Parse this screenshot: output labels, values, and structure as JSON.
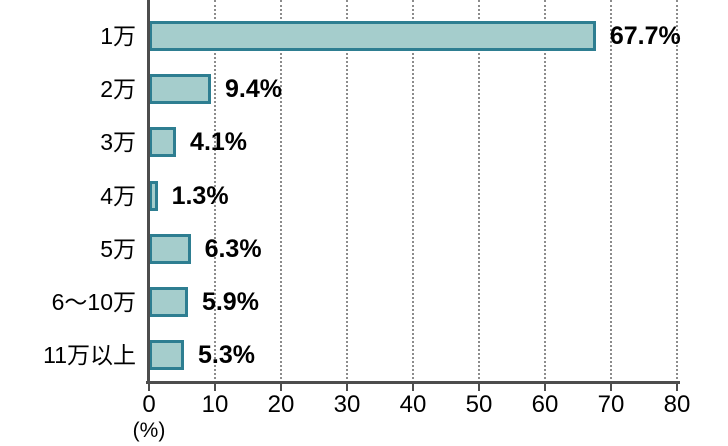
{
  "chart_data": {
    "type": "bar",
    "orientation": "horizontal",
    "title": "",
    "categories": [
      "1万",
      "2万",
      "3万",
      "4万",
      "5万",
      "6〜10万",
      "11万以上"
    ],
    "values": [
      67.7,
      9.4,
      4.1,
      1.3,
      6.3,
      5.9,
      5.3
    ],
    "value_labels": [
      "67.7%",
      "9.4%",
      "4.1%",
      "1.3%",
      "6.3%",
      "5.9%",
      "5.3%"
    ],
    "xlabel": "(%)",
    "ylabel": "",
    "xlim": [
      0,
      80
    ],
    "xticks": [
      0,
      10,
      20,
      30,
      40,
      50,
      60,
      70,
      80
    ],
    "xtick_labels": [
      "0",
      "10",
      "20",
      "30",
      "40",
      "50",
      "60",
      "70",
      "80"
    ],
    "grid": "dotted-vertical",
    "legend": "none",
    "colors": {
      "bar_fill": "#a5cdcc",
      "bar_border": "#2e7e91",
      "axis_line": "#4d4d4d",
      "gridline": "#8c8c8c",
      "label_text": "#000000"
    }
  }
}
